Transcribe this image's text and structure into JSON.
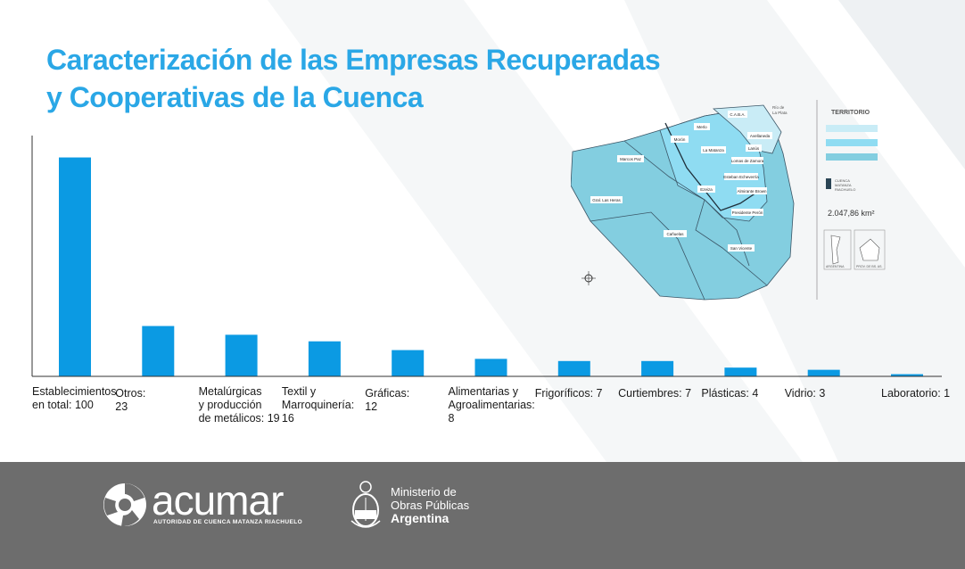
{
  "title": {
    "line1": "Caracterización de las Empresas Recuperadas",
    "line2": "y Cooperativas de la Cuenca"
  },
  "chart_data": {
    "type": "bar",
    "categories": [
      "Establecimientos en total: 100",
      "Otros: 23",
      "Metalúrgicas y producción de metálicos: 19",
      "Textil y Marroquinería: 16",
      "Gráficas: 12",
      "Alimentarias y Agroalimentarias: 8",
      "Frigoríficos: 7",
      "Curtiembres: 7",
      "Plásticas: 4",
      "Vidrio: 3",
      "Laboratorio: 1"
    ],
    "label_lines": [
      [
        "Establecimientos",
        "en total: 100"
      ],
      [
        "Otros:",
        "23"
      ],
      [
        "Metalúrgicas",
        "y producción",
        "de metálicos: 19"
      ],
      [
        "Textil y",
        "Marroquinería:",
        "16"
      ],
      [
        "Gráficas:",
        "12"
      ],
      [
        "Alimentarias y",
        "Agroalimentarias:",
        "8"
      ],
      [
        "Frigoríficos: 7"
      ],
      [
        "Curtiembres: 7"
      ],
      [
        "Plásticas: 4"
      ],
      [
        "Vidrio: 3"
      ],
      [
        "Laboratorio: 1"
      ]
    ],
    "values": [
      100,
      23,
      19,
      16,
      12,
      8,
      7,
      7,
      4,
      3,
      1
    ],
    "ylim": [
      0,
      110
    ],
    "bar_color": "#0b9ae3",
    "axis_color": "#333333",
    "grid": false,
    "legend": "none"
  },
  "map": {
    "legend_title": "TERRITORIO",
    "area": "2.047,86 km²",
    "legend_caption": [
      "CUENCA",
      "MATANZA",
      "RIACHUELO"
    ],
    "river_label": [
      "Río de",
      "La Plata"
    ],
    "inset_labels": [
      "ARGENTINA",
      "PROV. DE BS. AS."
    ],
    "districts": [
      "C.A.B.A.",
      "Morón",
      "Merlo",
      "La Matanza",
      "Lanús",
      "Avellaneda",
      "Lomas de Zamora",
      "Marcos Paz",
      "Ezeiza",
      "Gral. Las Heras",
      "Esteban Echeverría",
      "Almirante Brown",
      "Presidente Perón",
      "Cañuelas",
      "San Vicente"
    ],
    "colors": {
      "light": "#c9ecf6",
      "mid": "#8fdcf2",
      "dark": "#83cee0",
      "outline": "#3a5566"
    }
  },
  "footer": {
    "acumar_name": "acumar",
    "acumar_tagline": "AUTORIDAD DE CUENCA MATANZA RIACHUELO",
    "ministry_line1": "Ministerio de",
    "ministry_line2": "Obras Públicas",
    "ministry_line3": "Argentina",
    "bg_color": "#6d6d6d"
  }
}
